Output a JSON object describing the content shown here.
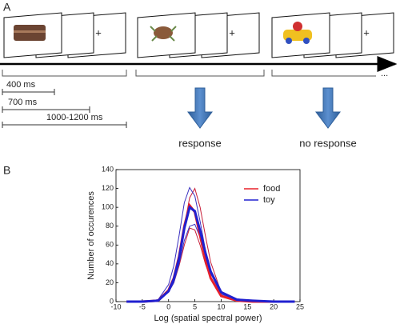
{
  "panel_a": {
    "label": "A",
    "trials": [
      {
        "fixation": "+"
      },
      {
        "fixation": "+"
      },
      {
        "fixation": "+"
      }
    ],
    "continuation": "...",
    "durations": [
      "400 ms",
      "700 ms",
      "1000-1200 ms"
    ],
    "outcomes": [
      "response",
      "no response"
    ]
  },
  "panel_b_label": "B",
  "chart_data": {
    "type": "line",
    "xlabel": "Log (spatial spectral power)",
    "ylabel": "Number of occurences",
    "x": [
      -8,
      -5,
      -2,
      0,
      1,
      2,
      3,
      4,
      5,
      6,
      7,
      8,
      10,
      13,
      16,
      20,
      24
    ],
    "xlim": [
      -10,
      25
    ],
    "xticks": [
      -10,
      -5,
      0,
      5,
      10,
      15,
      20,
      25
    ],
    "ylim": [
      0,
      140
    ],
    "yticks": [
      0,
      20,
      40,
      60,
      80,
      100,
      120,
      140
    ],
    "legend": "upper right",
    "series": [
      {
        "color": "#c8203a",
        "values": [
          0,
          0,
          1,
          10,
          22,
          45,
          80,
          110,
          120,
          100,
          70,
          42,
          10,
          2,
          0,
          0,
          0
        ]
      },
      {
        "color": "#c8203a",
        "values": [
          0,
          0,
          2,
          10,
          20,
          38,
          60,
          78,
          76,
          60,
          40,
          24,
          6,
          1,
          0,
          0,
          0
        ]
      },
      {
        "color": "#3a30c0",
        "values": [
          0,
          0,
          2,
          18,
          38,
          70,
          105,
          121,
          112,
          85,
          55,
          30,
          8,
          2,
          0,
          0,
          0
        ]
      },
      {
        "color": "#3a30c0",
        "values": [
          0,
          0,
          1,
          10,
          20,
          40,
          65,
          80,
          82,
          68,
          48,
          30,
          10,
          3,
          1,
          0,
          0
        ]
      },
      {
        "name": "food",
        "color": "#e8202a",
        "values": [
          0,
          0,
          1,
          12,
          25,
          48,
          80,
          102,
          95,
          70,
          45,
          25,
          6,
          1,
          0,
          0,
          0
        ]
      },
      {
        "name": "toy",
        "color": "#2020d0",
        "values": [
          0,
          0,
          1,
          11,
          24,
          46,
          78,
          100,
          96,
          75,
          52,
          32,
          10,
          2,
          1,
          0,
          0
        ]
      }
    ]
  }
}
